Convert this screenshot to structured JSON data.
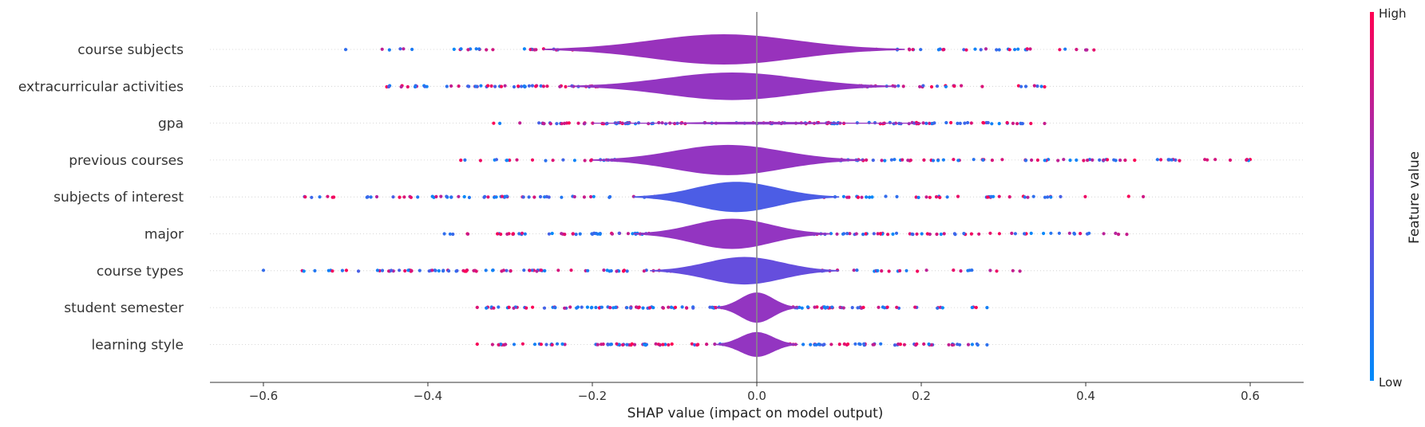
{
  "chart_data": {
    "type": "violin",
    "title": "",
    "xlabel": "SHAP value (impact on model output)",
    "xlim": [
      -0.665,
      0.665
    ],
    "xticks": [
      -0.6,
      -0.4,
      -0.2,
      0.0,
      0.2,
      0.4,
      0.6
    ],
    "xtick_labels": [
      "−0.6",
      "−0.4",
      "−0.2",
      "0.0",
      "0.2",
      "0.4",
      "0.6"
    ],
    "colorbar": {
      "label": "Feature value",
      "high": "High",
      "low": "Low",
      "low_color": "#008bfb",
      "high_color": "#ff0052"
    },
    "zero_line": true,
    "features": [
      {
        "name": "course subjects",
        "range": [
          -0.5,
          0.41
        ],
        "violin_extent": [
          -0.26,
          0.18
        ],
        "max_half_width": 0.55
      },
      {
        "name": "extracurricular activities",
        "range": [
          -0.45,
          0.35
        ],
        "violin_extent": [
          -0.23,
          0.17
        ],
        "max_half_width": 0.5
      },
      {
        "name": "gpa",
        "range": [
          -0.32,
          0.35
        ],
        "violin_extent": [
          -0.2,
          0.2
        ],
        "max_half_width": 0.05
      },
      {
        "name": "previous courses",
        "range": [
          -0.36,
          0.6
        ],
        "violin_extent": [
          -0.2,
          0.13
        ],
        "max_half_width": 0.55
      },
      {
        "name": "subjects of interest",
        "range": [
          -0.55,
          0.47
        ],
        "violin_extent": [
          -0.15,
          0.1
        ],
        "max_half_width": 0.55
      },
      {
        "name": "major",
        "range": [
          -0.38,
          0.45
        ],
        "violin_extent": [
          -0.15,
          0.09
        ],
        "max_half_width": 0.55
      },
      {
        "name": "course types",
        "range": [
          -0.6,
          0.32
        ],
        "violin_extent": [
          -0.13,
          0.1
        ],
        "max_half_width": 0.5
      },
      {
        "name": "student semester",
        "range": [
          -0.34,
          0.28
        ],
        "violin_extent": [
          -0.05,
          0.05
        ],
        "max_half_width": 0.55
      },
      {
        "name": "learning style",
        "range": [
          -0.34,
          0.28
        ],
        "violin_extent": [
          -0.05,
          0.05
        ],
        "max_half_width": 0.45
      }
    ]
  }
}
